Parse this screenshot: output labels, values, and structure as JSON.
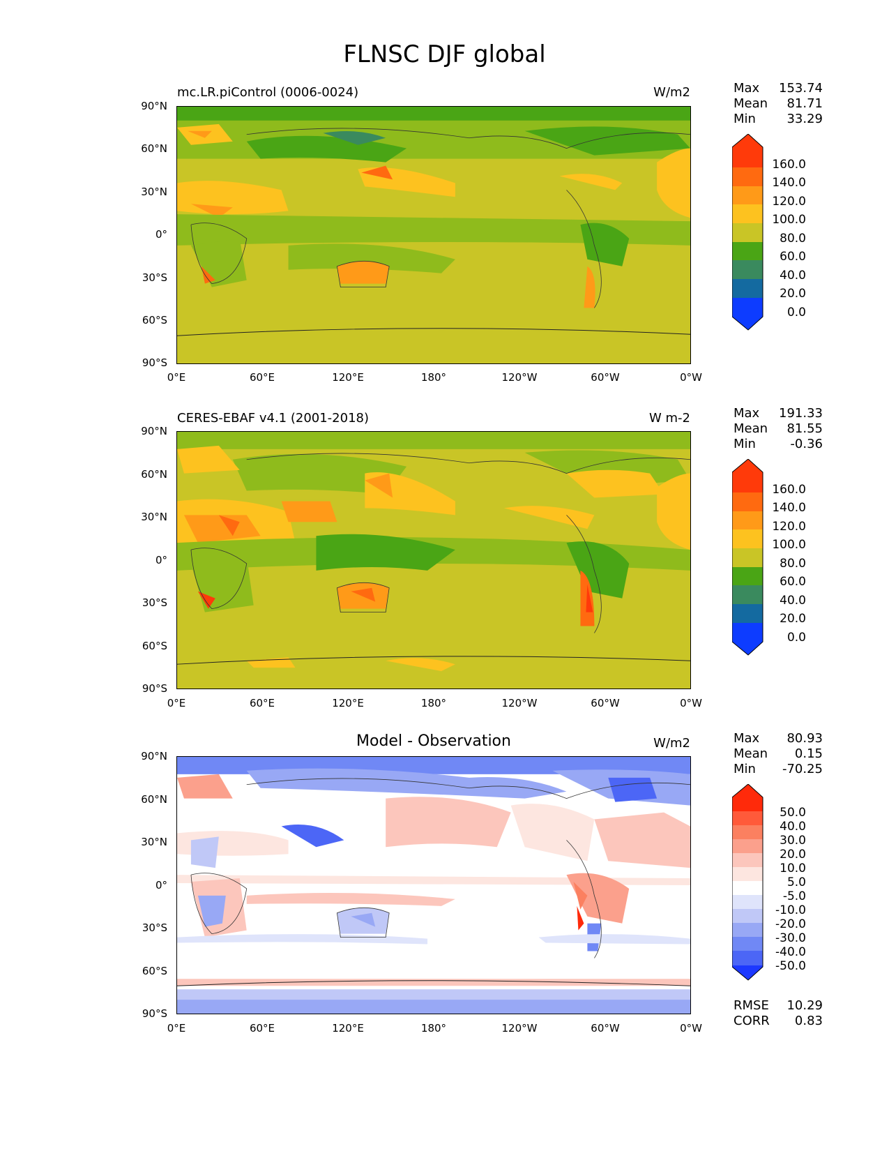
{
  "title": "FLNSC DJF global",
  "lat_ticks": [
    "90°N",
    "60°N",
    "30°N",
    "0°",
    "30°S",
    "60°S",
    "90°S"
  ],
  "lon_ticks": [
    "0°E",
    "60°E",
    "120°E",
    "180°",
    "120°W",
    "60°W",
    "0°W"
  ],
  "panels": [
    {
      "title": "mc.LR.piControl (0006-0024)",
      "units": "W/m2",
      "stats": [
        {
          "label": "Max",
          "value": "153.74"
        },
        {
          "label": "Mean",
          "value": "81.71"
        },
        {
          "label": "Min",
          "value": "33.29"
        }
      ],
      "colorbar_labels": [
        "160.0",
        "140.0",
        "120.0",
        "100.0",
        "80.0",
        "60.0",
        "40.0",
        "20.0",
        "0.0"
      ],
      "colorbar_colors": [
        "#ff3a0a",
        "#ff6a10",
        "#ff9a18",
        "#fdc21f",
        "#c9c526",
        "#8fbb1c",
        "#4aa515",
        "#3a8a5e",
        "#146aa0",
        "#0d3cff"
      ]
    },
    {
      "title": "CERES-EBAF v4.1 (2001-2018)",
      "units": "W m-2",
      "stats": [
        {
          "label": "Max",
          "value": "191.33"
        },
        {
          "label": "Mean",
          "value": "81.55"
        },
        {
          "label": "Min",
          "value": "-0.36"
        }
      ],
      "colorbar_labels": [
        "160.0",
        "140.0",
        "120.0",
        "100.0",
        "80.0",
        "60.0",
        "40.0",
        "20.0",
        "0.0"
      ],
      "colorbar_colors": [
        "#ff3a0a",
        "#ff6a10",
        "#ff9a18",
        "#fdc21f",
        "#c9c526",
        "#8fbb1c",
        "#4aa515",
        "#3a8a5e",
        "#146aa0",
        "#0d3cff"
      ]
    },
    {
      "title": "Model - Observation",
      "units": "W/m2",
      "stats": [
        {
          "label": "Max",
          "value": "80.93"
        },
        {
          "label": "Mean",
          "value": "0.15"
        },
        {
          "label": "Min",
          "value": "-70.25"
        }
      ],
      "colorbar_labels": [
        "50.0",
        "40.0",
        "30.0",
        "20.0",
        "10.0",
        "5.0",
        "-5.0",
        "-10.0",
        "-20.0",
        "-30.0",
        "-40.0",
        "-50.0"
      ],
      "colorbar_colors": [
        "#ff2a0a",
        "#ff5a3a",
        "#fb8060",
        "#fba08c",
        "#fcc6bc",
        "#fde6e0",
        "#ffffff",
        "#dfe4fb",
        "#c0c8f7",
        "#98a8f5",
        "#7088f5",
        "#4c66f6",
        "#1c38ff"
      ],
      "error_stats": [
        {
          "label": "RMSE",
          "value": "10.29"
        },
        {
          "label": "CORR",
          "value": "0.83"
        }
      ]
    }
  ]
}
